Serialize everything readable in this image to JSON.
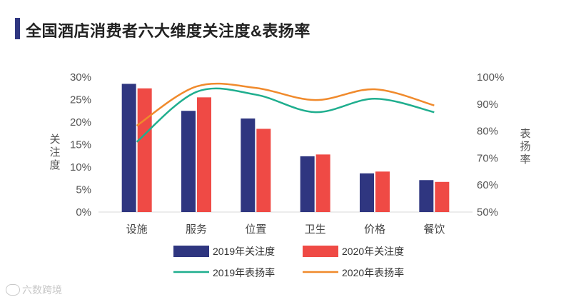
{
  "title": "全国酒店消费者六大维度关注度&表扬率",
  "watermark": "六数跨境",
  "chart_data": {
    "type": "bar",
    "title": "全国酒店消费者六大维度关注度&表扬率",
    "categories": [
      "设施",
      "服务",
      "位置",
      "卫生",
      "价格",
      "餐饮"
    ],
    "ylabel": "关注度",
    "y2label": "表扬率",
    "ylim": [
      0,
      30
    ],
    "y2lim": [
      50,
      100
    ],
    "yticks": [
      "0%",
      "5%",
      "10%",
      "15%",
      "20%",
      "25%",
      "30%"
    ],
    "y2ticks": [
      "50%",
      "60%",
      "70%",
      "80%",
      "90%",
      "100%"
    ],
    "bar_series": [
      {
        "name": "2019年关注度",
        "color": "#2f3680",
        "values": [
          28.5,
          22.5,
          20.8,
          12.4,
          8.6,
          7.1
        ]
      },
      {
        "name": "2020年关注度",
        "color": "#ef4a45",
        "values": [
          27.5,
          25.5,
          18.5,
          12.8,
          9.0,
          6.7
        ]
      }
    ],
    "line_series": [
      {
        "name": "2019年表扬率",
        "color": "#1fae8e",
        "axis": "right",
        "values": [
          76,
          94.5,
          93.5,
          87,
          92,
          87
        ]
      },
      {
        "name": "2020年表扬率",
        "color": "#f08a2c",
        "axis": "right",
        "values": [
          82,
          96.5,
          96,
          91.5,
          95.5,
          89.5
        ]
      }
    ]
  }
}
